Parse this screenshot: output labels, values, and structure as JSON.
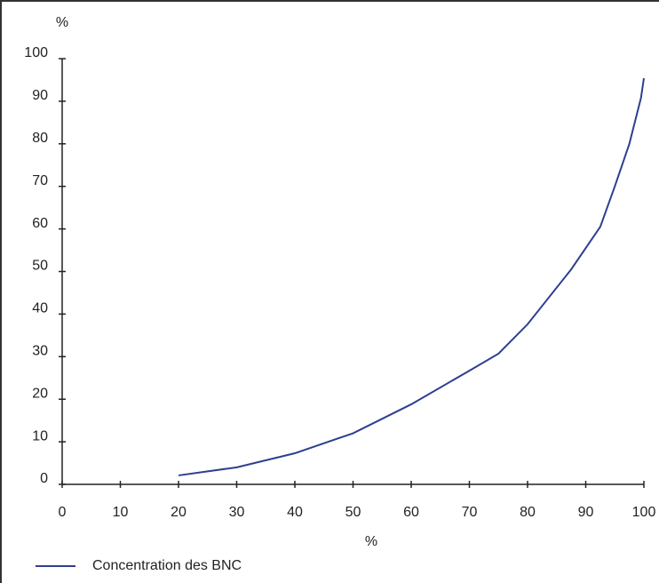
{
  "chart_data": {
    "type": "line",
    "y_label": "%",
    "x_label": "%",
    "x": [
      20,
      30,
      40,
      50,
      60,
      70,
      75,
      80,
      87.5,
      92.5,
      95,
      97.5,
      99.5,
      100
    ],
    "series": [
      {
        "name": "Concentration des BNC",
        "color": "#2e3f8f",
        "values": [
          2.1,
          4,
          7.3,
          12,
          18.8,
          26.7,
          30.7,
          37.6,
          50.5,
          60.5,
          70,
          80,
          90.8,
          95.4
        ]
      }
    ],
    "xlim": [
      0,
      100
    ],
    "xticks": [
      0,
      10,
      20,
      30,
      40,
      50,
      60,
      70,
      80,
      90,
      100
    ],
    "ylim": [
      0,
      100
    ],
    "yticks": [
      0,
      10,
      20,
      30,
      40,
      50,
      60,
      70,
      80,
      90,
      100
    ],
    "grid": false,
    "legend": "bottom-left"
  }
}
